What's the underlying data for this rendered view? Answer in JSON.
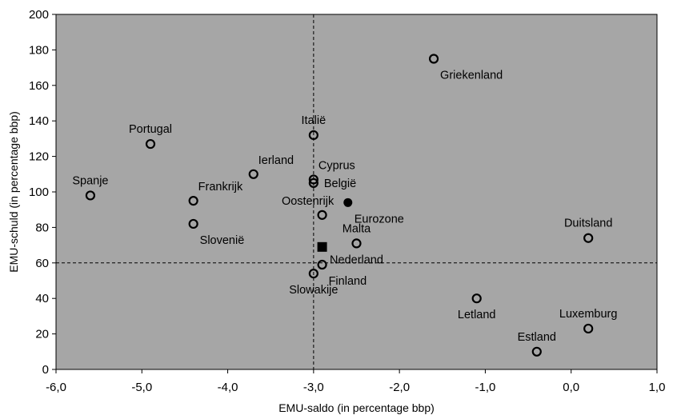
{
  "chart_data": {
    "type": "scatter",
    "title": "",
    "xlabel": "EMU-saldo  (in percentage bbp)",
    "ylabel": "EMU-schuld  (in percentage  bbp)",
    "xlim": [
      -6.0,
      1.0
    ],
    "ylim": [
      0,
      200
    ],
    "x_ticks": [
      -6,
      -5,
      -4,
      -3,
      -2,
      -1,
      0,
      1
    ],
    "x_tick_labels": [
      "-6,0",
      "-5,0",
      "-4,0",
      "-3,0",
      "-2,0",
      "-1,0",
      "0,0",
      "1,0"
    ],
    "y_ticks": [
      0,
      20,
      40,
      60,
      80,
      100,
      120,
      140,
      160,
      180,
      200
    ],
    "y_tick_labels": [
      "0",
      "20",
      "40",
      "60",
      "80",
      "100",
      "120",
      "140",
      "160",
      "180",
      "200"
    ],
    "reference_lines": {
      "x": -3.0,
      "y": 60
    },
    "grid": false,
    "background_color": "#a6a6a6",
    "points": [
      {
        "label": "Griekenland",
        "x": -1.6,
        "y": 175,
        "marker": "open-circle",
        "anchor": "below-right"
      },
      {
        "label": "Portugal",
        "x": -4.9,
        "y": 127,
        "marker": "open-circle",
        "anchor": "above"
      },
      {
        "label": "Italië",
        "x": -3.0,
        "y": 132,
        "marker": "open-circle",
        "anchor": "above"
      },
      {
        "label": "Ierland",
        "x": -3.7,
        "y": 110,
        "marker": "open-circle",
        "anchor": "above-right"
      },
      {
        "label": "Spanje",
        "x": -5.6,
        "y": 98,
        "marker": "open-circle",
        "anchor": "above"
      },
      {
        "label": "Frankrijk",
        "x": -4.4,
        "y": 95,
        "marker": "open-circle",
        "anchor": "above-right"
      },
      {
        "label": "Cyprus",
        "x": -3.0,
        "y": 107,
        "marker": "open-circle",
        "anchor": "above-right"
      },
      {
        "label": "België",
        "x": -3.0,
        "y": 105,
        "marker": "open-circle",
        "anchor": "right"
      },
      {
        "label": "Eurozone",
        "x": -2.6,
        "y": 94,
        "marker": "filled-circle",
        "anchor": "below-right"
      },
      {
        "label": "Oostenrijk",
        "x": -2.9,
        "y": 87,
        "marker": "open-circle",
        "anchor": "above-left"
      },
      {
        "label": "Slovenië",
        "x": -4.4,
        "y": 82,
        "marker": "open-circle",
        "anchor": "below-right"
      },
      {
        "label": "Malta",
        "x": -2.5,
        "y": 71,
        "marker": "open-circle",
        "anchor": "above"
      },
      {
        "label": "Nederland",
        "x": -2.5,
        "y": 71,
        "marker": "none",
        "anchor": "below"
      },
      {
        "label": "",
        "x": -2.9,
        "y": 69,
        "marker": "filled-square",
        "anchor": "none"
      },
      {
        "label": "Finland",
        "x": -2.9,
        "y": 59,
        "marker": "open-circle",
        "anchor": "below-right"
      },
      {
        "label": "Slowakije",
        "x": -3.0,
        "y": 54,
        "marker": "open-circle",
        "anchor": "below"
      },
      {
        "label": "Duitsland",
        "x": 0.2,
        "y": 74,
        "marker": "open-circle",
        "anchor": "above"
      },
      {
        "label": "Letland",
        "x": -1.1,
        "y": 40,
        "marker": "open-circle",
        "anchor": "below"
      },
      {
        "label": "Luxemburg",
        "x": 0.2,
        "y": 23,
        "marker": "open-circle",
        "anchor": "above"
      },
      {
        "label": "Estland",
        "x": -0.4,
        "y": 10,
        "marker": "open-circle",
        "anchor": "above"
      }
    ]
  }
}
